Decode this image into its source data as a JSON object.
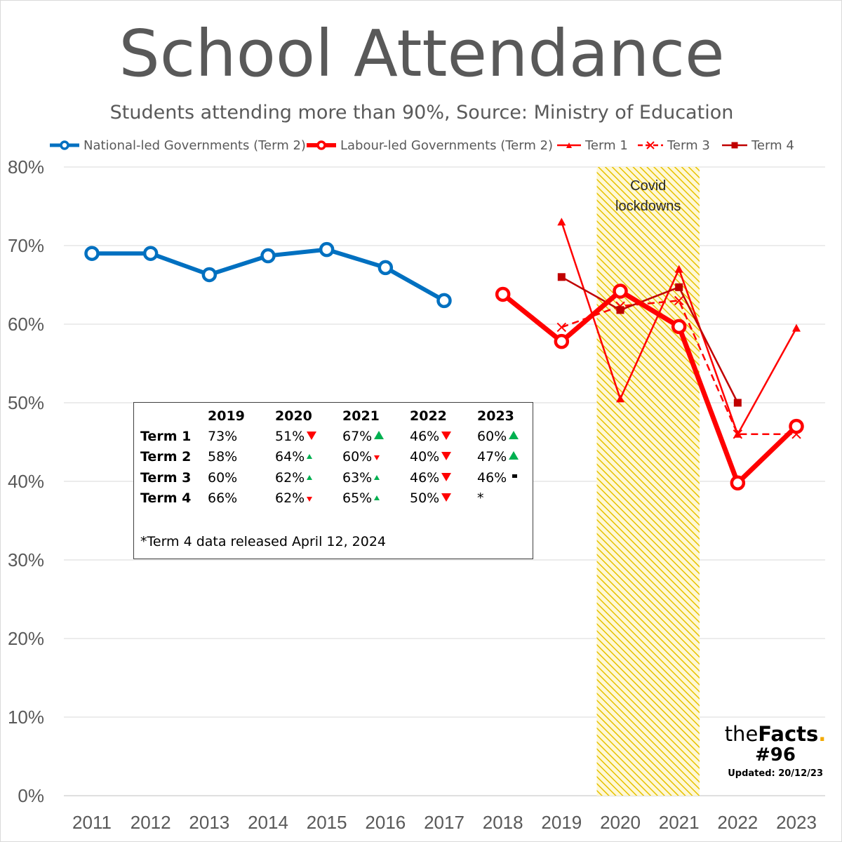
{
  "title": "School Attendance",
  "subtitle": "Students attending more than 90%, Source: Ministry of Education",
  "colors": {
    "national": "#0070c0",
    "labour": "#ff0000",
    "term1": "#ff0000",
    "term3": "#ff0000",
    "term4": "#c00000",
    "covid_band": "#e6c200",
    "grid": "#d9d9d9",
    "up": "#00b050",
    "down": "#ff0000"
  },
  "chart_data": {
    "type": "line",
    "title": "School Attendance",
    "subtitle": "Students attending more than 90%, Source: Ministry of Education",
    "x": [
      2011,
      2012,
      2013,
      2014,
      2015,
      2016,
      2017,
      2018,
      2019,
      2020,
      2021,
      2022,
      2023
    ],
    "x_tick_labels": [
      "2011",
      "2012",
      "2013",
      "2014",
      "2015",
      "2016",
      "2017",
      "2018",
      "2019",
      "2020",
      "2021",
      "2022",
      "2023"
    ],
    "ylim": [
      0,
      80
    ],
    "y_ticks": [
      0,
      10,
      20,
      30,
      40,
      50,
      60,
      70,
      80
    ],
    "y_tick_labels": [
      "0%",
      "10%",
      "20%",
      "30%",
      "40%",
      "50%",
      "60%",
      "70%",
      "80%"
    ],
    "grid": true,
    "legend_position": "top",
    "series": [
      {
        "name": "National-led Governments (Term 2)",
        "key": "national",
        "x": [
          2011,
          2012,
          2013,
          2014,
          2015,
          2016,
          2017
        ],
        "values": [
          69.0,
          69.0,
          66.3,
          68.7,
          69.5,
          67.2,
          63.0
        ]
      },
      {
        "name": "Labour-led Governments (Term 2)",
        "key": "labour",
        "x": [
          2018,
          2019,
          2020,
          2021,
          2022,
          2023
        ],
        "values": [
          63.8,
          57.8,
          64.2,
          59.7,
          39.8,
          47.0
        ]
      },
      {
        "name": "Term 1",
        "key": "term1",
        "x": [
          2019,
          2020,
          2021,
          2022,
          2023
        ],
        "values": [
          73.0,
          50.5,
          67.0,
          46.0,
          59.5
        ]
      },
      {
        "name": "Term 3",
        "key": "term3",
        "x": [
          2019,
          2020,
          2021,
          2022,
          2023
        ],
        "values": [
          59.6,
          62.3,
          63.0,
          46.0,
          46.0
        ]
      },
      {
        "name": "Term 4",
        "key": "term4",
        "x": [
          2019,
          2020,
          2021,
          2022
        ],
        "values": [
          66.0,
          61.8,
          64.7,
          50.0
        ]
      }
    ],
    "annotations": [
      {
        "type": "band",
        "x_from": 2019.6,
        "x_to": 2021.35,
        "label": "Covid lockdowns",
        "label_lines": [
          "Covid",
          "lockdowns"
        ]
      }
    ]
  },
  "table": {
    "headers": [
      "2019",
      "2020",
      "2021",
      "2022",
      "2023"
    ],
    "rows": [
      {
        "label": "Term 1",
        "cells": [
          {
            "text": "73%",
            "arrow": "none"
          },
          {
            "text": "51%",
            "arrow": "down-big"
          },
          {
            "text": "67%",
            "arrow": "up-big"
          },
          {
            "text": "46%",
            "arrow": "down-big"
          },
          {
            "text": "60%",
            "arrow": "up-big"
          }
        ]
      },
      {
        "label": "Term 2",
        "cells": [
          {
            "text": "58%",
            "arrow": "none"
          },
          {
            "text": "64%",
            "arrow": "up-small"
          },
          {
            "text": "60%",
            "arrow": "down-small"
          },
          {
            "text": "40%",
            "arrow": "down-big"
          },
          {
            "text": "47%",
            "arrow": "up-big"
          }
        ]
      },
      {
        "label": "Term 3",
        "cells": [
          {
            "text": "60%",
            "arrow": "none"
          },
          {
            "text": "62%",
            "arrow": "up-small"
          },
          {
            "text": "63%",
            "arrow": "up-small"
          },
          {
            "text": "46%",
            "arrow": "down-big"
          },
          {
            "text": "46%",
            "arrow": "flat"
          }
        ]
      },
      {
        "label": "Term 4",
        "cells": [
          {
            "text": "66%",
            "arrow": "none"
          },
          {
            "text": "62%",
            "arrow": "down-small"
          },
          {
            "text": "65%",
            "arrow": "up-small"
          },
          {
            "text": "50%",
            "arrow": "down-big"
          },
          {
            "text": "*",
            "arrow": "none"
          }
        ]
      }
    ],
    "footnote": "*Term 4 data released April 12, 2024"
  },
  "brand": {
    "the": "the",
    "facts": "Facts",
    "dot": ".",
    "number": "#96",
    "updated": "Updated: 20/12/23"
  }
}
